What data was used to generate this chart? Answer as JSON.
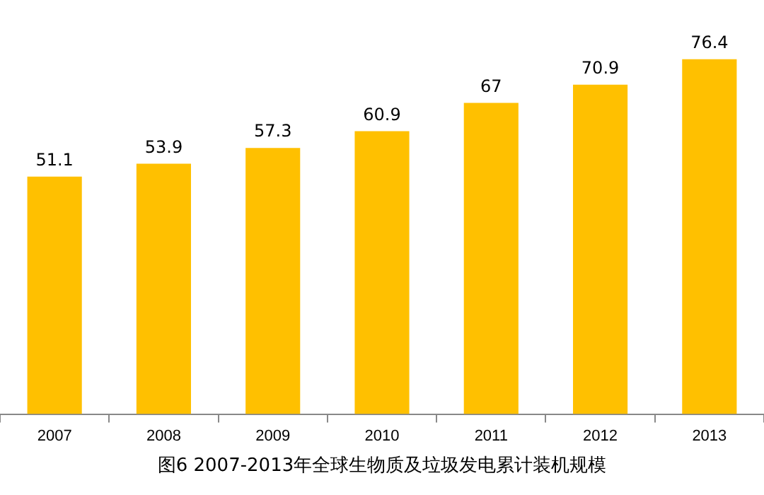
{
  "chart_data": {
    "type": "bar",
    "title": "图6 2007-2013年全球生物质及垃圾发电累计装机规模",
    "categories": [
      "2007",
      "2008",
      "2009",
      "2010",
      "2011",
      "2012",
      "2013"
    ],
    "values": [
      51.1,
      53.9,
      57.3,
      60.9,
      67,
      70.9,
      76.4
    ],
    "color": "#ffc000",
    "data_labels": true,
    "tick_labels": "x",
    "grid": false,
    "legend": false
  }
}
